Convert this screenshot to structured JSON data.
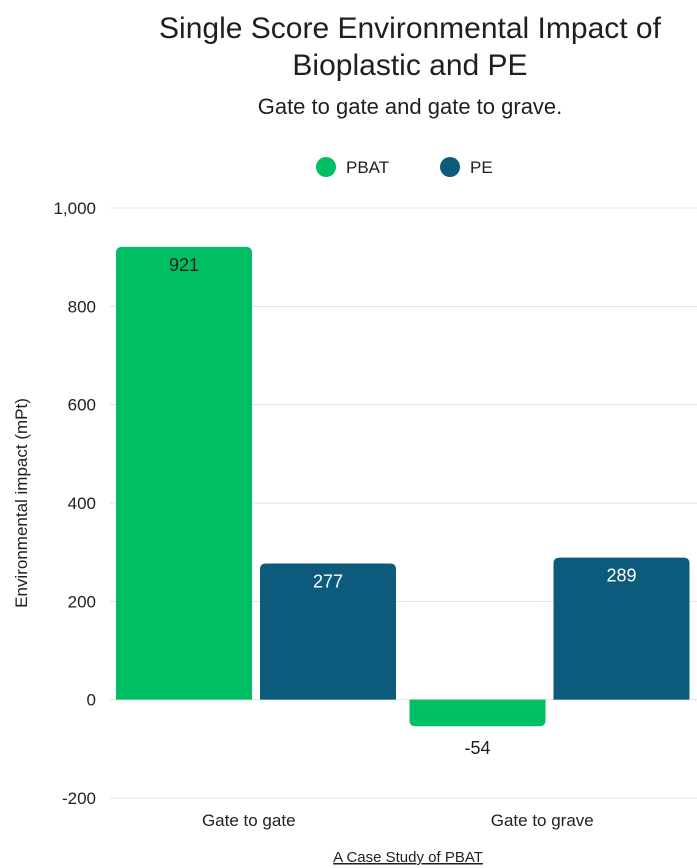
{
  "chart_data": {
    "type": "bar",
    "title_line1": "Single Score Environmental Impact of",
    "title_line2": "Bioplastic and PE",
    "subtitle": "Gate to gate and gate to grave.",
    "ylabel": "Environmental impact (mPt)",
    "xlabel": "A Case Study of PBAT",
    "categories": [
      "Gate to gate",
      "Gate to grave"
    ],
    "series": [
      {
        "name": "PBAT",
        "values": [
          921,
          -54
        ],
        "labels": [
          "921",
          "-54"
        ],
        "color": "#00bf63",
        "label_color": "#1f1f1f"
      },
      {
        "name": "PE",
        "values": [
          277,
          289
        ],
        "labels": [
          "277",
          "289"
        ],
        "color": "#0c5a7c",
        "label_color": "#ffffff"
      }
    ],
    "ylim": [
      -200,
      1000
    ],
    "yticks": [
      -200,
      0,
      200,
      400,
      600,
      800,
      1000
    ],
    "ytick_labels": [
      "-200",
      "0",
      "200",
      "400",
      "600",
      "800",
      "1,000"
    ],
    "grid": true,
    "legend_position": "top-center"
  }
}
